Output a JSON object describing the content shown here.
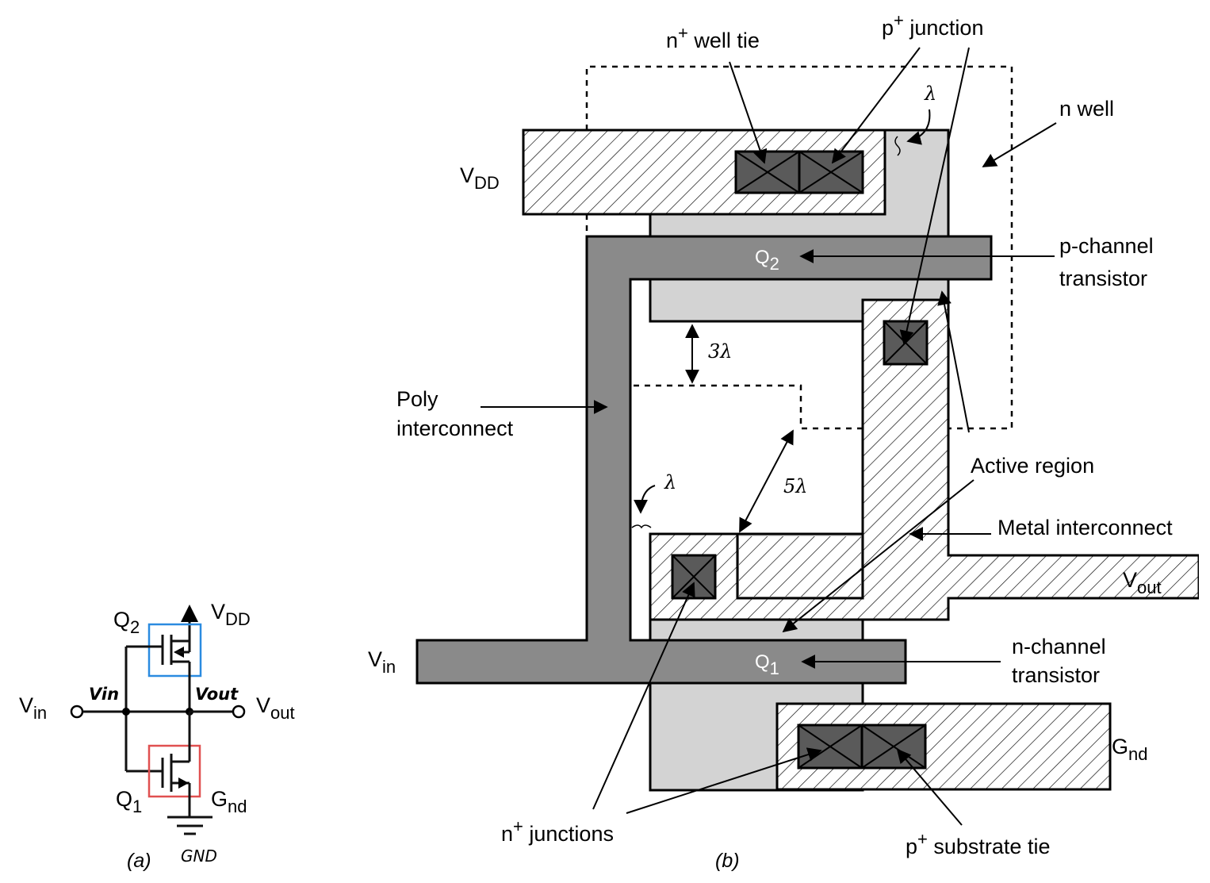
{
  "colors": {
    "metal_hatch": "#000000",
    "poly": "#8a8a8a",
    "active": "#d3d3d3",
    "contact": "#5a5a5a",
    "p_channel_box": "#2b8be0",
    "n_channel_box": "#e05050"
  },
  "schematic": {
    "vdd_main": "V",
    "vdd_sub": "DD",
    "q2_main": "Q",
    "q2_sub": "2",
    "q1_main": "Q",
    "q1_sub": "1",
    "vin_main": "V",
    "vin_sub": "in",
    "vout_main": "V",
    "vout_sub": "out",
    "gnd_main": "G",
    "gnd_sub": "nd",
    "hand_vin": "Vin",
    "hand_vout": "Vout",
    "hand_gnd": "GND",
    "caption": "(a)"
  },
  "layout": {
    "n_well_tie_sup": "+",
    "n_well_tie_main": "n",
    "n_well_tie_rest": " well tie",
    "p_junction_main": "p",
    "p_junction_sup": "+",
    "p_junction_rest": " junction",
    "lambda_symbol": "λ",
    "n_well": "n well",
    "vdd_main": "V",
    "vdd_sub": "DD",
    "q2_main": "Q",
    "q2_sub": "2",
    "q1_main": "Q",
    "q1_sub": "1",
    "p_channel_line1": "p-channel",
    "p_channel_line2": "transistor",
    "n_channel_line1": "n-channel",
    "n_channel_line2": "transistor",
    "three_lambda": "3λ",
    "five_lambda": "5λ",
    "poly_line1": "Poly",
    "poly_line2": "interconnect",
    "active_region": "Active region",
    "metal_interconnect": "Metal interconnect",
    "vout_main": "V",
    "vout_sub": "out",
    "vin_main": "V",
    "vin_sub": "in",
    "gnd_main": "G",
    "gnd_sub": "nd",
    "n_junctions_main": "n",
    "n_junctions_sup": "+",
    "n_junctions_rest": " junctions",
    "p_substrate_main": "p",
    "p_substrate_sup": "+",
    "p_substrate_rest": " substrate tie",
    "caption": "(b)"
  }
}
